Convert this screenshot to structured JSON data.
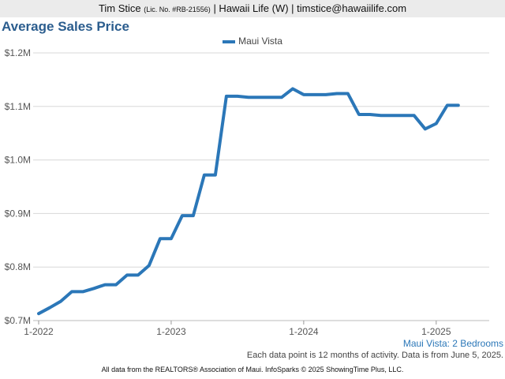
{
  "header": {
    "name": "Tim Stice",
    "license": "(Lic. No. #RB-21556)",
    "rest": "| Hawaii Life (W) | timstice@hawaiilife.com"
  },
  "chart_data": {
    "type": "line",
    "title": "Average Sales Price",
    "subtitle": "Maui Vista: 2 Bedrooms",
    "note": "Each data point is 12 months of activity. Data is from June 5, 2025.",
    "footer": "All data from the REALTORS® Association of Maui. InfoSparks © 2025 ShowingTime Plus, LLC.",
    "xlabel": "",
    "ylabel": "",
    "ylim": [
      0.7,
      1.2
    ],
    "y_ticks": [
      0.7,
      0.8,
      0.9,
      1.0,
      1.1,
      1.2
    ],
    "y_tick_labels": [
      "$0.7M",
      "$0.8M",
      "$0.9M",
      "$1.0M",
      "$1.1M",
      "$1.2M"
    ],
    "x_ticks": [
      0,
      12,
      24,
      36
    ],
    "x_tick_labels": [
      "1-2022",
      "1-2023",
      "1-2024",
      "1-2025"
    ],
    "xlim": [
      -0.5,
      40.8
    ],
    "grid": "horizontal",
    "legend": "top-center",
    "colors": {
      "series": "#2b77b8",
      "title": "#2b5d8e",
      "grid": "#d8d8d8"
    },
    "series": [
      {
        "name": "Maui Vista",
        "x": [
          0,
          1,
          2,
          3,
          4,
          5,
          6,
          7,
          8,
          9,
          10,
          11,
          12,
          13,
          14,
          15,
          16,
          17,
          18,
          19,
          20,
          21,
          22,
          23,
          24,
          25,
          26,
          27,
          28,
          29,
          30,
          31,
          32,
          33,
          34,
          35,
          36,
          37,
          38
        ],
        "values": [
          0.713,
          0.724,
          0.736,
          0.754,
          0.754,
          0.76,
          0.767,
          0.767,
          0.785,
          0.785,
          0.803,
          0.853,
          0.853,
          0.896,
          0.896,
          0.972,
          0.972,
          1.119,
          1.119,
          1.117,
          1.117,
          1.117,
          1.117,
          1.133,
          1.122,
          1.122,
          1.122,
          1.124,
          1.124,
          1.085,
          1.085,
          1.083,
          1.083,
          1.083,
          1.083,
          1.058,
          1.068,
          1.102,
          1.102
        ]
      }
    ]
  }
}
